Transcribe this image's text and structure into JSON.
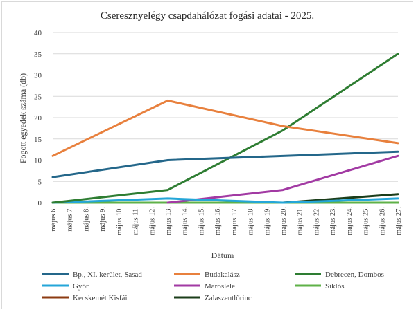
{
  "chart_data": {
    "type": "line",
    "title": "Cseresznyelégy csapdahálózat fogási adatai - 2025.",
    "xlabel": "Dátum",
    "ylabel": "Fogott egyedek száma (db)",
    "ylim": [
      0,
      40
    ],
    "yticks": [
      0,
      5,
      10,
      15,
      20,
      25,
      30,
      35,
      40
    ],
    "grid": true,
    "legend_position": "bottom",
    "categories": [
      "május 6.",
      "május 7.",
      "május 8.",
      "május 9.",
      "május 10.",
      "május 11.",
      "május 12.",
      "május 13.",
      "május 14.",
      "május 15.",
      "május 16.",
      "május 17.",
      "május 18.",
      "május 19.",
      "május 20.",
      "május 21.",
      "május 22.",
      "május 23.",
      "május 24.",
      "május 25.",
      "május 26.",
      "május 27."
    ],
    "series": [
      {
        "name": "Bp., XI. kerület, Sasad",
        "color": "#24678a",
        "points": [
          [
            0,
            6
          ],
          [
            7,
            10
          ],
          [
            21,
            12
          ]
        ]
      },
      {
        "name": "Budakalász",
        "color": "#e8803d",
        "points": [
          [
            0,
            11
          ],
          [
            7,
            24
          ],
          [
            14,
            18
          ],
          [
            21,
            14
          ]
        ]
      },
      {
        "name": "Debrecen, Dombos",
        "color": "#2e7d32",
        "points": [
          [
            0,
            0
          ],
          [
            7,
            3
          ],
          [
            14,
            17
          ],
          [
            21,
            35
          ]
        ]
      },
      {
        "name": "Győr",
        "color": "#24a6d8",
        "points": [
          [
            0,
            0
          ],
          [
            7,
            1
          ],
          [
            14,
            0
          ],
          [
            21,
            1
          ]
        ]
      },
      {
        "name": "Maroslele",
        "color": "#a23aa3",
        "points": [
          [
            7,
            0
          ],
          [
            14,
            3
          ],
          [
            21,
            11
          ]
        ]
      },
      {
        "name": "Siklós",
        "color": "#5fb148",
        "points": [
          [
            0,
            0
          ],
          [
            7,
            0
          ],
          [
            14,
            0
          ],
          [
            21,
            0
          ]
        ]
      },
      {
        "name": "Kecskemét Kisfái",
        "color": "#8c3b12",
        "points": [
          [
            0,
            0
          ],
          [
            7,
            0
          ],
          [
            14,
            0
          ],
          [
            21,
            0
          ]
        ]
      },
      {
        "name": "Zalaszentlőrinc",
        "color": "#1b3d1a",
        "points": [
          [
            0,
            0
          ],
          [
            7,
            0
          ],
          [
            14,
            0
          ],
          [
            21,
            2
          ]
        ]
      }
    ]
  }
}
